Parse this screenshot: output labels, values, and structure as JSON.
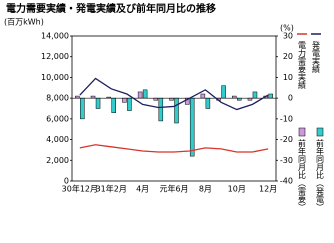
{
  "chart_data": {
    "type": "combo",
    "title": "電力需要実績・発電実績及び前年同月比の推移",
    "ylabel": "(百万kWh)",
    "y2label": "(%)",
    "categories": [
      "30年12月",
      null,
      "31年2月",
      null,
      "4月",
      null,
      "元年6月",
      null,
      "8月",
      null,
      "10月",
      null,
      "12月"
    ],
    "ylim": [
      0,
      14000
    ],
    "yticks": [
      0,
      {
        "value": 2000,
        "label": "2,000"
      },
      {
        "value": 4000,
        "label": "4,000"
      },
      {
        "value": 6000,
        "label": "6,000"
      },
      {
        "value": 8000,
        "label": "8,000"
      },
      {
        "value": 10000,
        "label": "10,000"
      },
      {
        "value": 12000,
        "label": "12,000"
      },
      {
        "value": 14000,
        "label": "14,000"
      }
    ],
    "y2lim": [
      -40,
      30
    ],
    "y2ticks": [
      -40,
      -30,
      -20,
      -10,
      0,
      10,
      20,
      30
    ],
    "series": [
      {
        "name": "発電実績",
        "type": "line",
        "color": "#1f1f5f",
        "values": [
          8300,
          9900,
          8900,
          8400,
          7400,
          7100,
          7200,
          8000,
          8800,
          7600,
          6900,
          7400,
          8300
        ]
      },
      {
        "name": "電力需要実績",
        "type": "line",
        "color": "#d9342b",
        "values": [
          3200,
          3500,
          3300,
          3100,
          2900,
          2800,
          2800,
          2900,
          3200,
          3100,
          2800,
          2800,
          3100
        ]
      },
      {
        "name": "前年同月比（需要）",
        "type": "bar",
        "axis": "y2",
        "color": "#cc99dd",
        "values": [
          1,
          1,
          0.5,
          -2,
          3,
          -1,
          -1,
          -3,
          2,
          -1,
          1,
          -1,
          1
        ]
      },
      {
        "name": "前年同月比（発電）",
        "type": "bar",
        "axis": "y2",
        "color": "#33cccc",
        "values": [
          -10,
          -5,
          -7,
          -6,
          4,
          -11,
          -12,
          -28,
          -5,
          6,
          -1,
          3,
          2
        ]
      }
    ]
  }
}
